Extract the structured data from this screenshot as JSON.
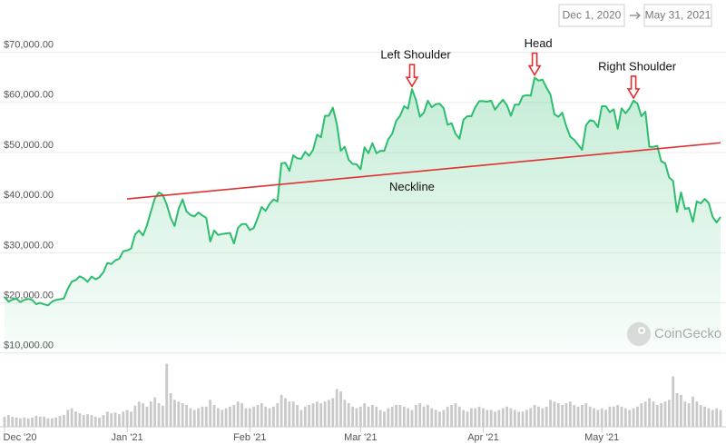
{
  "chart_data": {
    "type": "line",
    "date_range": {
      "from": "Dec 1, 2020",
      "to": "May 31, 2021"
    },
    "watermark": "CoinGecko",
    "categories": [
      "Dec '20",
      null,
      null,
      null,
      null,
      null,
      null,
      null,
      null,
      null,
      null,
      null,
      null,
      null,
      null,
      null,
      null,
      null,
      null,
      null,
      null,
      null,
      null,
      null,
      null,
      null,
      null,
      null,
      null,
      null,
      null,
      "Jan '21",
      null,
      null,
      null,
      null,
      null,
      null,
      null,
      null,
      null,
      null,
      null,
      null,
      null,
      null,
      null,
      null,
      null,
      null,
      null,
      null,
      null,
      null,
      null,
      null,
      null,
      null,
      null,
      null,
      null,
      null,
      "Feb '21",
      null,
      null,
      null,
      null,
      null,
      null,
      null,
      null,
      null,
      null,
      null,
      null,
      null,
      null,
      null,
      null,
      null,
      null,
      null,
      null,
      null,
      null,
      null,
      null,
      null,
      null,
      null,
      "Mar '21",
      null,
      null,
      null,
      null,
      null,
      null,
      null,
      null,
      null,
      null,
      null,
      null,
      null,
      null,
      null,
      null,
      null,
      null,
      null,
      null,
      null,
      null,
      null,
      null,
      null,
      null,
      null,
      null,
      null,
      null,
      "Apr '21",
      null,
      null,
      null,
      null,
      null,
      null,
      null,
      null,
      null,
      null,
      null,
      null,
      null,
      null,
      null,
      null,
      null,
      null,
      null,
      null,
      null,
      null,
      null,
      null,
      null,
      null,
      null,
      null,
      null,
      "May '21",
      null,
      null,
      null,
      null,
      null,
      null,
      null,
      null,
      null,
      null,
      null,
      null,
      null,
      null,
      null,
      null,
      null,
      null,
      null,
      null,
      null,
      null,
      null,
      null,
      null,
      null,
      null,
      null,
      null,
      null
    ],
    "series": [
      {
        "color": "#2dbd6e",
        "values": [
          19700,
          18800,
          19200,
          19400,
          18700,
          19150,
          19350,
          19150,
          18300,
          18550,
          18250,
          18050,
          18800,
          19150,
          19270,
          19450,
          21350,
          22800,
          23100,
          23850,
          23450,
          22750,
          23800,
          23250,
          23700,
          24700,
          26500,
          26300,
          27040,
          27360,
          28850,
          29000,
          29400,
          32200,
          33000,
          32000,
          34000,
          36800,
          39400,
          40600,
          40100,
          38200,
          35500,
          33900,
          37300,
          39200,
          36800,
          36100,
          35800,
          36600,
          36000,
          35500,
          30800,
          33000,
          32100,
          32300,
          32400,
          32500,
          30400,
          33500,
          34300,
          34300,
          33100,
          33500,
          35500,
          37700,
          36900,
          38300,
          39200,
          38800,
          46400,
          46500,
          44900,
          48000,
          47400,
          47300,
          48700,
          47900,
          49100,
          52100,
          51600,
          55900,
          55900,
          57500,
          54200,
          48900,
          49700,
          47100,
          46300,
          46200,
          45200,
          49600,
          48400,
          50400,
          48400,
          48900,
          48900,
          51200,
          52300,
          54900,
          55900,
          57800,
          57300,
          61200,
          59100,
          55700,
          56500,
          58900,
          57600,
          58200,
          58300,
          57400,
          54100,
          54400,
          52300,
          51300,
          55100,
          55800,
          55800,
          57600,
          58800,
          58800,
          58700,
          58900,
          57100,
          58200,
          59100,
          58000,
          55900,
          58100,
          58100,
          59800,
          60000,
          59900,
          63500,
          62900,
          63100,
          61500,
          60100,
          56200,
          55700,
          56500,
          53800,
          51700,
          51100,
          50100,
          49100,
          54000,
          55000,
          54800,
          53600,
          57800,
          57800,
          56600,
          57200,
          53300,
          57400,
          56400,
          57400,
          58900,
          58300,
          55800,
          56700,
          49700,
          49700,
          49900,
          46800,
          46400,
          43600,
          42900,
          36700,
          40600,
          37300,
          37500,
          34700,
          38800,
          38400,
          39300,
          38500,
          35700,
          34600,
          35700
        ]
      }
    ],
    "volume": {
      "color": "#c9c9c9",
      "ylim": [
        0,
        80
      ],
      "values": [
        12,
        14,
        12,
        11,
        10,
        11,
        10,
        11,
        13,
        12,
        12,
        10,
        10,
        11,
        13,
        14,
        20,
        22,
        18,
        16,
        14,
        15,
        14,
        12,
        11,
        14,
        18,
        16,
        17,
        15,
        18,
        20,
        18,
        25,
        30,
        28,
        24,
        30,
        35,
        28,
        25,
        75,
        40,
        32,
        30,
        28,
        26,
        22,
        20,
        22,
        24,
        24,
        32,
        26,
        22,
        20,
        22,
        24,
        26,
        30,
        28,
        22,
        22,
        24,
        26,
        28,
        24,
        22,
        24,
        28,
        38,
        34,
        30,
        30,
        26,
        20,
        24,
        26,
        28,
        30,
        28,
        30,
        32,
        34,
        45,
        42,
        32,
        28,
        24,
        22,
        24,
        28,
        24,
        26,
        24,
        20,
        18,
        22,
        24,
        26,
        26,
        24,
        22,
        20,
        26,
        28,
        24,
        26,
        22,
        20,
        18,
        20,
        24,
        26,
        28,
        24,
        20,
        18,
        22,
        22,
        24,
        22,
        20,
        20,
        18,
        20,
        22,
        24,
        22,
        20,
        18,
        18,
        20,
        22,
        26,
        24,
        22,
        24,
        32,
        30,
        28,
        26,
        28,
        30,
        26,
        24,
        26,
        28,
        24,
        22,
        20,
        22,
        20,
        24,
        24,
        26,
        24,
        22,
        20,
        22,
        24,
        28,
        30,
        34,
        30,
        26,
        28,
        30,
        32,
        60,
        40,
        38,
        30,
        28,
        36,
        30,
        26,
        24,
        22,
        20,
        22,
        20
      ]
    },
    "neckline": {
      "label": "Neckline",
      "color": "#e03131",
      "x": [
        31,
        181
      ],
      "values": [
        39300,
        50500
      ]
    },
    "annotations": [
      {
        "text": "Left Shoulder",
        "x": 103
      },
      {
        "text": "Head",
        "x": 134
      },
      {
        "text": "Right Shoulder",
        "x": 159
      }
    ],
    "ylim": [
      8000,
      72000
    ],
    "yticks": [
      {
        "value": 10000,
        "label": "$10,000.00"
      },
      {
        "value": 20000,
        "label": "$20,000.00"
      },
      {
        "value": 30000,
        "label": "$30,000.00"
      },
      {
        "value": 40000,
        "label": "$40,000.00"
      },
      {
        "value": 50000,
        "label": "$50,000.00"
      },
      {
        "value": 60000,
        "label": "$60,000.00"
      },
      {
        "value": 70000,
        "label": "$70,000.00"
      }
    ],
    "grid": true
  }
}
